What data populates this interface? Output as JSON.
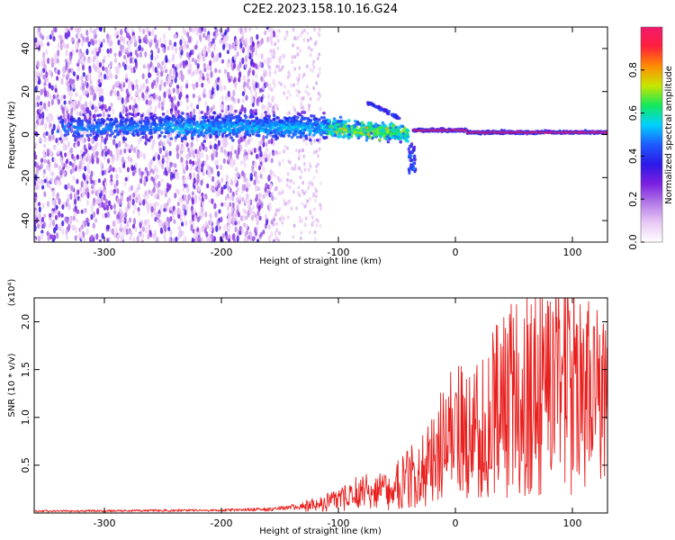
{
  "title": "C2E2.2023.158.10.16.G24",
  "colors": {
    "snr_line": "#e8201e",
    "colormap": [
      "#ffffff",
      "#e9c8f5",
      "#b27ae6",
      "#7a1fe0",
      "#2b19e6",
      "#1d5cff",
      "#00d2ff",
      "#14e85a",
      "#c8e600",
      "#ff8c00",
      "#ff1f3b",
      "#f0196e"
    ]
  },
  "chart_data": [
    {
      "type": "heatmap",
      "name": "spectrogram",
      "xlabel": "Height of straight line (km)",
      "ylabel": "Frequency (Hz)",
      "xlim": [
        -360,
        130
      ],
      "ylim": [
        -50,
        50
      ],
      "xticks": [
        -300,
        -200,
        -100,
        0,
        100
      ],
      "yticks": [
        -40,
        -20,
        0,
        20,
        40
      ],
      "grid": false,
      "colorbar": {
        "label": "Normalized spectral amplitude",
        "range": [
          0,
          1
        ],
        "ticks": [
          "0.0",
          "0.2",
          "0.4",
          "0.6",
          "0.8"
        ],
        "tick_values": [
          0,
          0.2,
          0.4,
          0.6,
          0.8
        ]
      },
      "features": [
        {
          "x_range": [
            -360,
            -155
          ],
          "description": "broadband purple speckle noise across all frequencies, amplitude ~0.05-0.25"
        },
        {
          "x_range": [
            -155,
            -120
          ],
          "description": "sparse light purple speckle noise"
        },
        {
          "x_range": [
            -250,
            -40
          ],
          "y_center": 4,
          "y_halfwidth": 8,
          "amplitude_peak": 0.45,
          "description": "widening dark blue signal band near 0-10 Hz"
        },
        {
          "x_range": [
            -100,
            -40
          ],
          "y_center": 0,
          "amplitude_peak": 0.6,
          "description": "cyan/green cores around 0 Hz"
        },
        {
          "x_range": [
            -75,
            -45
          ],
          "y_center": 12,
          "description": "rising branch up to ~15 Hz"
        },
        {
          "x_range": [
            -40,
            -34
          ],
          "y_center": -12,
          "description": "short branch down to ~-15 Hz"
        },
        {
          "x_range": [
            -34,
            130
          ],
          "y_center": 0,
          "amplitude_peak": 0.95,
          "description": "narrow red line near 0 Hz"
        }
      ]
    },
    {
      "type": "line",
      "name": "snr",
      "xlabel": "Height of straight line (km)",
      "ylabel": "SNR (10 * v/v)",
      "y_multiplier": "(x10⁴)",
      "xlim": [
        -360,
        130
      ],
      "ylim": [
        0,
        22500
      ],
      "xticks": [
        -300,
        -200,
        -100,
        0,
        100
      ],
      "yticks": [
        5000,
        10000,
        15000,
        20000
      ],
      "ytick_labels": [
        "0.5",
        "1.0",
        "1.5",
        "2.0"
      ],
      "grid": false,
      "series": [
        {
          "x": [
            -360,
            -200,
            -160,
            -120,
            -100,
            -80,
            -60,
            -40,
            -30,
            -20,
            -10,
            0,
            10,
            20,
            30,
            40,
            50,
            60,
            70,
            80,
            90,
            100,
            110,
            120,
            130
          ],
          "y": [
            200,
            300,
            400,
            900,
            1500,
            2500,
            2500,
            4000,
            4500,
            6000,
            8000,
            9000,
            9000,
            9500,
            11000,
            13000,
            13000,
            13500,
            14000,
            14500,
            14000,
            15000,
            13500,
            12500,
            11000
          ]
        }
      ]
    }
  ]
}
